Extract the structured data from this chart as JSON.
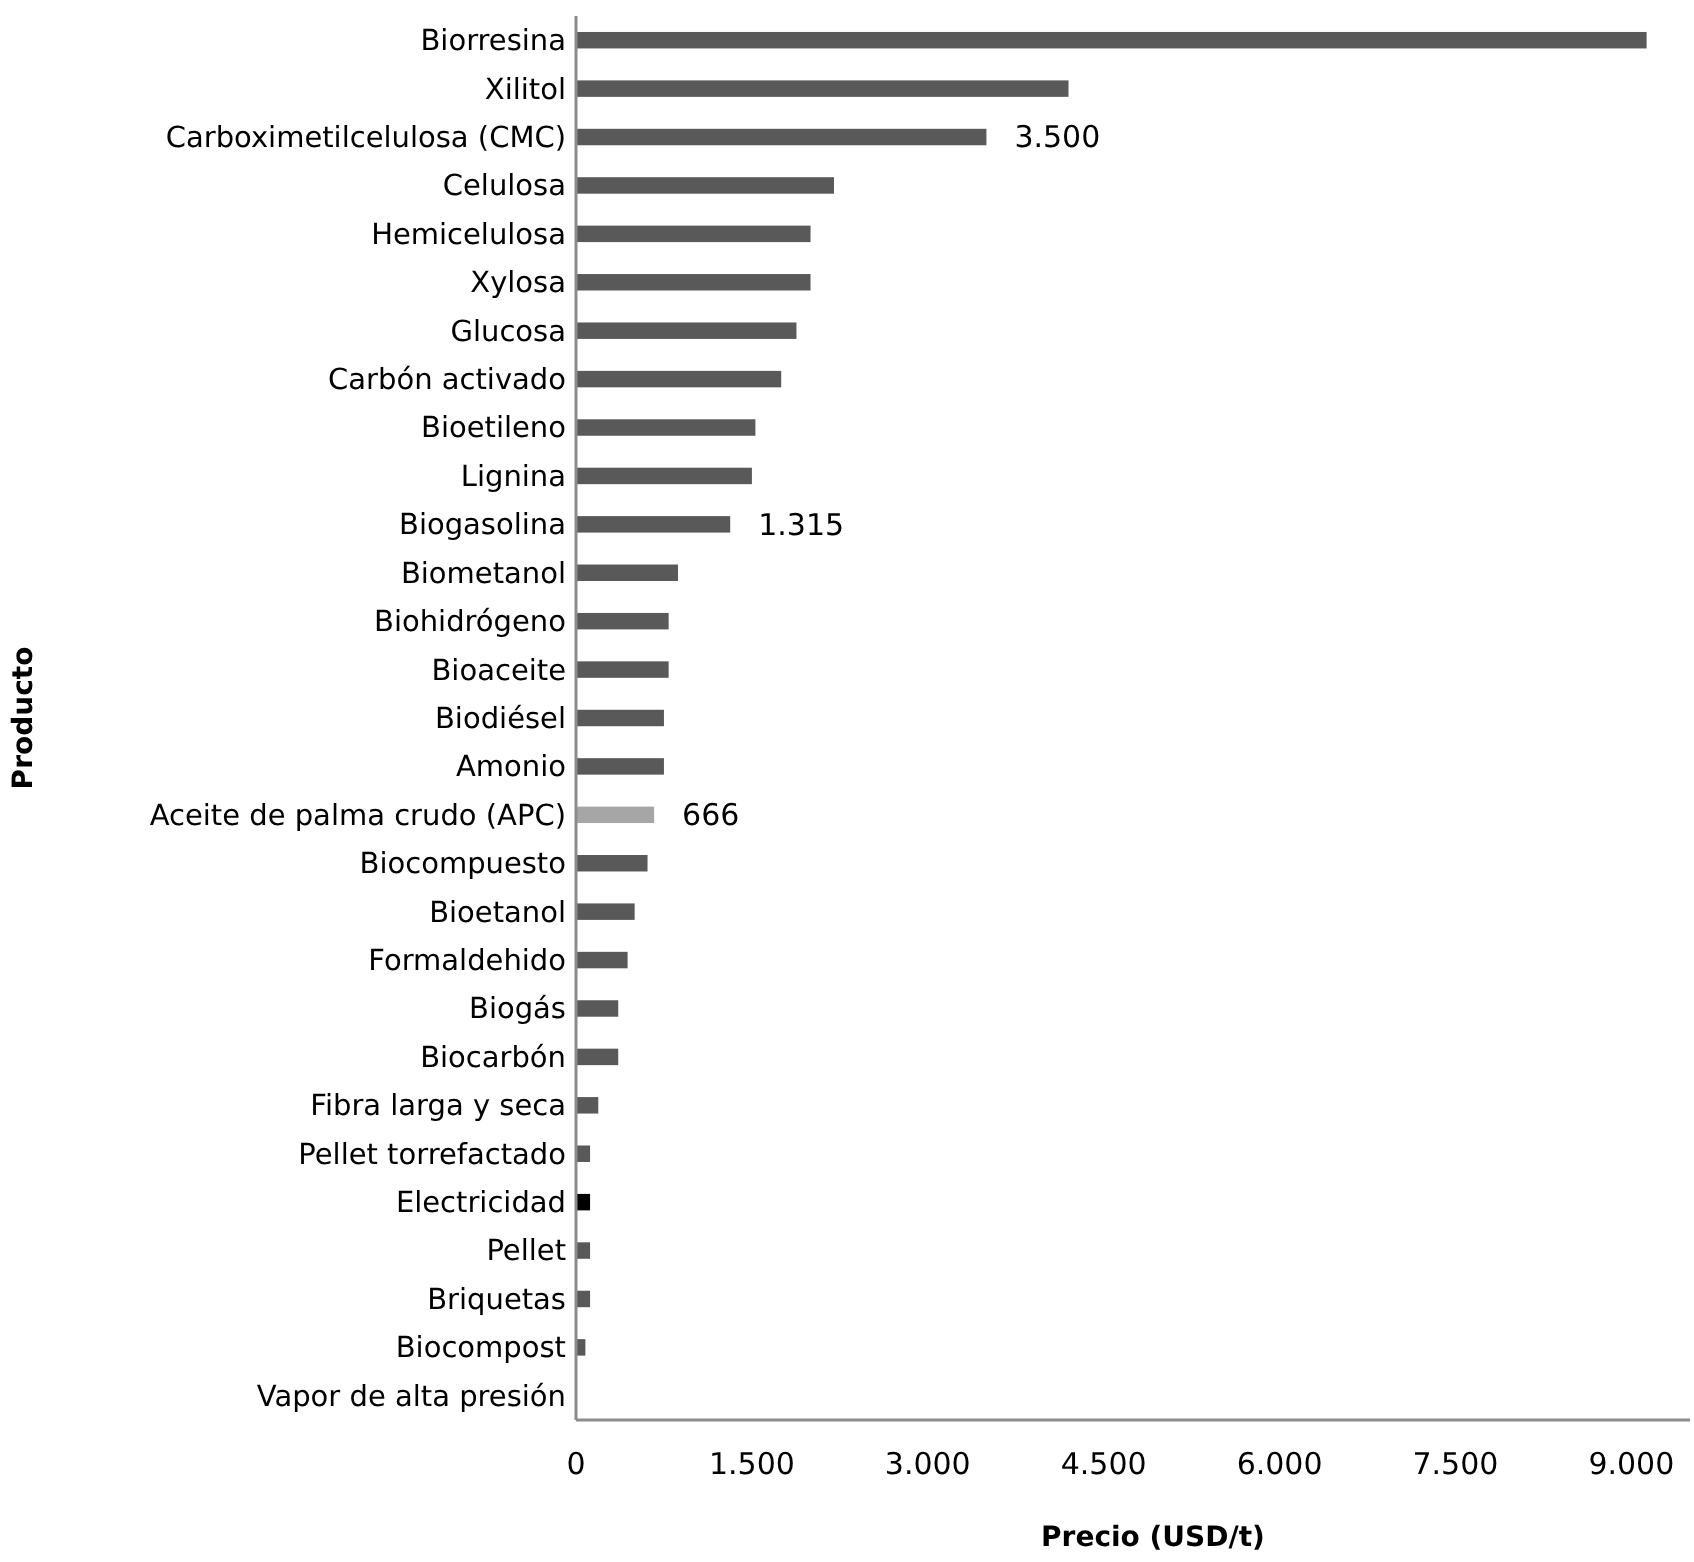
{
  "chart_data": {
    "type": "bar",
    "orientation": "horizontal",
    "xlabel": "Precio (USD/t)",
    "ylabel": "Producto",
    "categories": [
      "Biorresina",
      "Xilitol",
      "Carboximetilcelulosa (CMC)",
      "Celulosa",
      "Hemicelulosa",
      "Xylosa",
      "Glucosa",
      "Carbón activado",
      "Bioetileno",
      "Lignina",
      "Biogasolina",
      "Biometanol",
      "Biohidrógeno",
      "Bioaceite",
      "Biodiésel",
      "Amonio",
      "Aceite de palma crudo (APC)",
      "Biocompuesto",
      "Bioetanol",
      "Formaldehido",
      "Biogás",
      "Biocarbón",
      "Fibra larga y seca",
      "Pellet torrefactado",
      "Electricidad",
      "Pellet",
      "Briquetas",
      "Biocompost",
      "Vapor de alta presión"
    ],
    "values": [
      9130,
      4200,
      3500,
      2200,
      2000,
      2000,
      1880,
      1750,
      1530,
      1500,
      1315,
      870,
      790,
      790,
      750,
      750,
      666,
      610,
      500,
      440,
      360,
      360,
      190,
      120,
      120,
      120,
      120,
      80,
      0
    ],
    "colors": [
      "#595959",
      "#595959",
      "#595959",
      "#595959",
      "#595959",
      "#595959",
      "#595959",
      "#595959",
      "#595959",
      "#595959",
      "#595959",
      "#595959",
      "#595959",
      "#595959",
      "#595959",
      "#595959",
      "#a6a6a6",
      "#595959",
      "#595959",
      "#595959",
      "#595959",
      "#595959",
      "#595959",
      "#595959",
      "#000000",
      "#595959",
      "#595959",
      "#595959",
      "#595959"
    ],
    "value_labels": [
      null,
      null,
      "3.500",
      null,
      null,
      null,
      null,
      null,
      null,
      null,
      "1.315",
      null,
      null,
      null,
      null,
      null,
      "666",
      null,
      null,
      null,
      null,
      null,
      null,
      null,
      null,
      null,
      null,
      null,
      null
    ],
    "xlim": [
      0,
      9500
    ],
    "xticks": [
      0,
      {
        "value": 1500,
        "label": "1.500"
      },
      {
        "value": 3000,
        "label": "3.000"
      },
      {
        "value": 4500,
        "label": "4.500"
      },
      {
        "value": 6000,
        "label": "6.000"
      },
      {
        "value": 7500,
        "label": "7.500"
      },
      {
        "value": 9000,
        "label": "9.000"
      }
    ],
    "grid": false
  }
}
